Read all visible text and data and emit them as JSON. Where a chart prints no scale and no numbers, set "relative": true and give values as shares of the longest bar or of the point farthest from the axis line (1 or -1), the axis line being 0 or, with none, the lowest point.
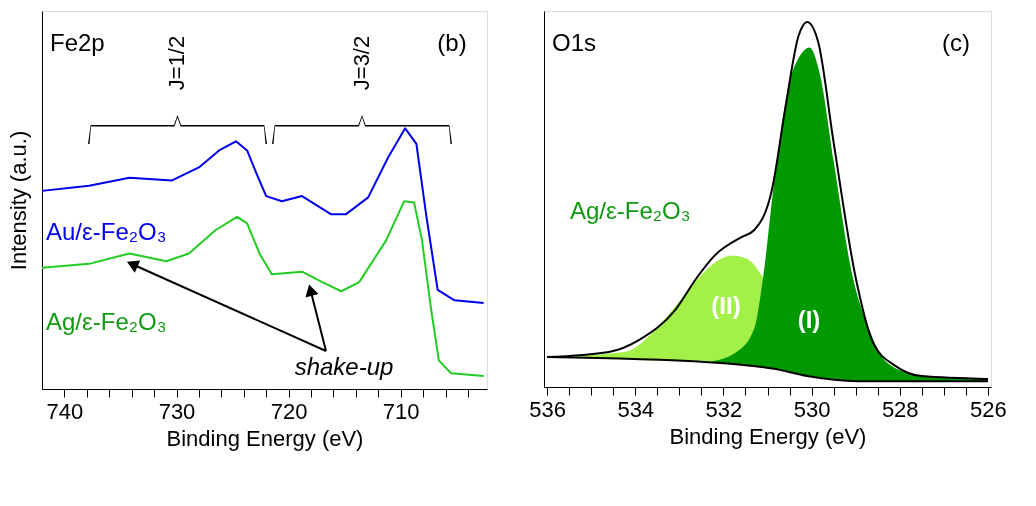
{
  "chart_data": [
    {
      "type": "line",
      "relative": true,
      "xlabel": "Binding Energy (eV)",
      "ylabel": "Intensity (a.u.)",
      "xlim": [
        742,
        702.3
      ],
      "xticks": [
        740,
        {
          "value": 738,
          "label": null
        },
        {
          "value": 736,
          "label": null
        },
        {
          "value": 734,
          "label": null
        },
        {
          "value": 732,
          "label": null
        },
        730,
        {
          "value": 728,
          "label": null
        },
        {
          "value": 726,
          "label": null
        },
        {
          "value": 724,
          "label": null
        },
        {
          "value": 722,
          "label": null
        },
        720,
        {
          "value": 718,
          "label": null
        },
        {
          "value": 716,
          "label": null
        },
        {
          "value": 714,
          "label": null
        },
        {
          "value": 712,
          "label": null
        },
        710,
        {
          "value": 708,
          "label": null
        },
        {
          "value": 706,
          "label": null
        },
        {
          "value": 704,
          "label": null
        }
      ],
      "tick_labels": "x",
      "grid": false,
      "legend": false,
      "line_style": "solid",
      "marker": "none",
      "annotations": [
        "Fe2p",
        "(b)",
        "J=1/2",
        "J=3/2",
        "shake-up"
      ],
      "series": [
        {
          "name": "Au/ε-Fe₂O₃",
          "color": "#0000ee",
          "x": [
            742,
            737.8,
            734.2,
            730.4,
            728.0,
            726.2,
            724.7,
            723.7,
            722.9,
            722.0,
            720.6,
            718.8,
            716.2,
            714.9,
            712.9,
            711.1,
            709.6,
            708.6,
            707.7,
            706.7,
            705.2,
            702.6
          ],
          "values": [
            0.76,
            0.78,
            0.81,
            0.8,
            0.85,
            0.915,
            0.95,
            0.915,
            0.83,
            0.74,
            0.72,
            0.74,
            0.67,
            0.67,
            0.735,
            0.89,
            1.0,
            0.94,
            0.66,
            0.38,
            0.34,
            0.33
          ]
        },
        {
          "name": "Ag/ε-Fe₂O₃",
          "color": "#22cc22",
          "x": [
            742,
            737.8,
            734.2,
            730.9,
            728.9,
            726.5,
            724.6,
            723.7,
            722.6,
            721.5,
            718.8,
            717.0,
            715.3,
            713.7,
            711.3,
            709.7,
            708.8,
            708.1,
            707.3,
            706.6,
            705.5,
            702.6
          ],
          "values": [
            0.465,
            0.48,
            0.52,
            0.49,
            0.52,
            0.61,
            0.66,
            0.635,
            0.52,
            0.44,
            0.45,
            0.41,
            0.375,
            0.41,
            0.57,
            0.72,
            0.715,
            0.57,
            0.31,
            0.11,
            0.06,
            0.05
          ]
        }
      ]
    },
    {
      "type": "area",
      "relative": true,
      "xlabel": "Binding Energy (eV)",
      "xlim": [
        536.07,
        525.93
      ],
      "xticks": [
        536,
        {
          "value": 535.5,
          "label": null
        },
        {
          "value": 535,
          "label": null
        },
        {
          "value": 534.5,
          "label": null
        },
        534,
        {
          "value": 533.5,
          "label": null
        },
        {
          "value": 533,
          "label": null
        },
        {
          "value": 532.5,
          "label": null
        },
        532,
        {
          "value": 531.5,
          "label": null
        },
        {
          "value": 531,
          "label": null
        },
        {
          "value": 530.5,
          "label": null
        },
        530,
        {
          "value": 529.5,
          "label": null
        },
        {
          "value": 529,
          "label": null
        },
        {
          "value": 528.5,
          "label": null
        },
        528,
        {
          "value": 527.5,
          "label": null
        },
        {
          "value": 527,
          "label": null
        },
        {
          "value": 526.5,
          "label": null
        },
        526
      ],
      "tick_labels": "x",
      "grid": false,
      "legend": false,
      "annotations": [
        "O1s",
        "(c)",
        "Ag/ε-Fe₂O₃"
      ],
      "series": [
        {
          "name": "(II)",
          "type": "area",
          "color": "#a3f048",
          "x": [
            536.0,
            534.25,
            533.3,
            532.7,
            532.2,
            531.8,
            531.45,
            531.1
          ],
          "values": [
            0.082,
            0.096,
            0.19,
            0.28,
            0.34,
            0.36,
            0.35,
            0.3
          ]
        },
        {
          "name": "(I)",
          "type": "area",
          "color": "#009900",
          "x": [
            532.35,
            531.7,
            531.3,
            531.1,
            530.85,
            530.55,
            530.25,
            530.05,
            529.8,
            529.5,
            529.1,
            528.7,
            528.3,
            527.5,
            526.0
          ],
          "values": [
            0.068,
            0.096,
            0.16,
            0.3,
            0.56,
            0.81,
            0.91,
            0.93,
            0.85,
            0.62,
            0.32,
            0.16,
            0.068,
            0.03,
            0.022
          ]
        },
        {
          "type": "line",
          "color": "#000000",
          "x": [
            536.0,
            534.6,
            533.9,
            533.1,
            532.6,
            532.2,
            531.6,
            531.3,
            530.9,
            530.6,
            530.3,
            530.1,
            529.85,
            529.5,
            529.0,
            528.6,
            528.1,
            527.5,
            526.0
          ],
          "values": [
            0.082,
            0.096,
            0.13,
            0.21,
            0.3,
            0.36,
            0.41,
            0.43,
            0.54,
            0.76,
            0.96,
            1.0,
            0.945,
            0.67,
            0.3,
            0.12,
            0.058,
            0.03,
            0.022
          ]
        },
        {
          "type": "line",
          "color": "#000000",
          "x": [
            536.0,
            532.35,
            530.85,
            530.1,
            528.95,
            526.0
          ],
          "values": [
            0.082,
            0.068,
            0.05,
            0.03,
            0.016,
            0.016
          ]
        }
      ]
    }
  ]
}
